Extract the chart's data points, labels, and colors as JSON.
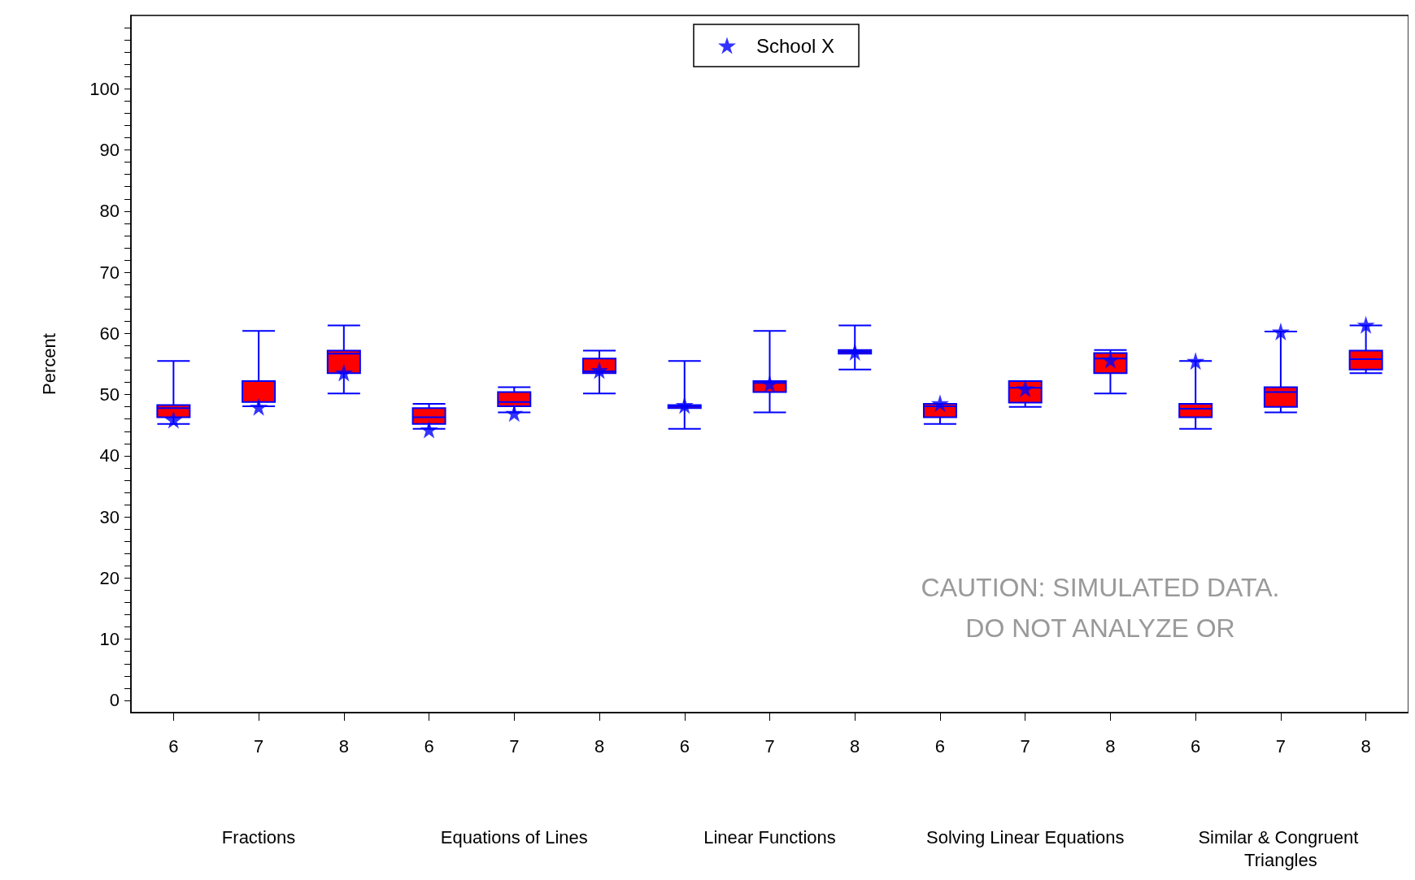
{
  "chart_data": {
    "type": "box",
    "ylabel": "Percent",
    "categories": [
      "6",
      "7",
      "8",
      "6",
      "7",
      "8",
      "6",
      "7",
      "8",
      "6",
      "7",
      "8",
      "6",
      "7",
      "8"
    ],
    "ylim": [
      -2,
      112
    ],
    "yticks": [
      0,
      10,
      20,
      30,
      40,
      50,
      60,
      70,
      80,
      90,
      100,
      {
        "value": 2,
        "label": null
      },
      {
        "value": 4,
        "label": null
      },
      {
        "value": 6,
        "label": null
      },
      {
        "value": 8,
        "label": null
      },
      {
        "value": 12,
        "label": null
      },
      {
        "value": 14,
        "label": null
      },
      {
        "value": 16,
        "label": null
      },
      {
        "value": 18,
        "label": null
      },
      {
        "value": 22,
        "label": null
      },
      {
        "value": 24,
        "label": null
      },
      {
        "value": 26,
        "label": null
      },
      {
        "value": 28,
        "label": null
      },
      {
        "value": 32,
        "label": null
      },
      {
        "value": 34,
        "label": null
      },
      {
        "value": 36,
        "label": null
      },
      {
        "value": 38,
        "label": null
      },
      {
        "value": 42,
        "label": null
      },
      {
        "value": 44,
        "label": null
      },
      {
        "value": 46,
        "label": null
      },
      {
        "value": 48,
        "label": null
      },
      {
        "value": 52,
        "label": null
      },
      {
        "value": 54,
        "label": null
      },
      {
        "value": 56,
        "label": null
      },
      {
        "value": 58,
        "label": null
      },
      {
        "value": 62,
        "label": null
      },
      {
        "value": 64,
        "label": null
      },
      {
        "value": 66,
        "label": null
      },
      {
        "value": 68,
        "label": null
      },
      {
        "value": 72,
        "label": null
      },
      {
        "value": 74,
        "label": null
      },
      {
        "value": 76,
        "label": null
      },
      {
        "value": 78,
        "label": null
      },
      {
        "value": 82,
        "label": null
      },
      {
        "value": 84,
        "label": null
      },
      {
        "value": 86,
        "label": null
      },
      {
        "value": 88,
        "label": null
      },
      {
        "value": 92,
        "label": null
      },
      {
        "value": 94,
        "label": null
      },
      {
        "value": 96,
        "label": null
      },
      {
        "value": 98,
        "label": null
      },
      {
        "value": 102,
        "label": null
      },
      {
        "value": 104,
        "label": null
      },
      {
        "value": 106,
        "label": null
      },
      {
        "value": 108,
        "label": null
      },
      {
        "value": 110,
        "label": null
      }
    ],
    "grid": false,
    "legend": "top",
    "series": [
      {
        "color": "#ff0000",
        "boxes": [
          {
            "low": 45.2,
            "q1": 46.3,
            "median": 47.8,
            "q3": 48.3,
            "high": 55.5
          },
          {
            "low": 48.1,
            "q1": 48.8,
            "median": 48.8,
            "q3": 52.2,
            "high": 60.4
          },
          {
            "low": 50.2,
            "q1": 53.5,
            "median": 56.7,
            "q3": 57.2,
            "high": 61.3
          },
          {
            "low": 44.4,
            "q1": 45.2,
            "median": 46.3,
            "q3": 47.8,
            "high": 48.5
          },
          {
            "low": 47.1,
            "q1": 48.1,
            "median": 48.8,
            "q3": 50.4,
            "high": 51.2
          },
          {
            "low": 50.2,
            "q1": 53.5,
            "median": 53.8,
            "q3": 55.9,
            "high": 57.2
          },
          {
            "low": 44.4,
            "q1": 47.8,
            "median": 48.1,
            "q3": 48.3,
            "high": 55.5
          },
          {
            "low": 47.1,
            "q1": 50.4,
            "median": 51.9,
            "q3": 52.2,
            "high": 60.4
          },
          {
            "low": 54.1,
            "q1": 56.7,
            "median": 57.0,
            "q3": 57.3,
            "high": 61.3
          },
          {
            "low": 45.2,
            "q1": 46.3,
            "median": 48.1,
            "q3": 48.5,
            "high": 48.5
          },
          {
            "low": 48.0,
            "q1": 48.7,
            "median": 51.1,
            "q3": 52.2,
            "high": 52.2
          },
          {
            "low": 50.2,
            "q1": 53.5,
            "median": 55.9,
            "q3": 56.8,
            "high": 57.3
          },
          {
            "low": 44.4,
            "q1": 46.3,
            "median": 47.7,
            "q3": 48.5,
            "high": 55.5
          },
          {
            "low": 47.1,
            "q1": 48.0,
            "median": 50.4,
            "q3": 51.2,
            "high": 60.3
          },
          {
            "low": 53.5,
            "q1": 54.1,
            "median": 55.8,
            "q3": 57.2,
            "high": 61.3
          }
        ]
      },
      {
        "type": "scatter",
        "name": "School X",
        "color": "#0000ff",
        "marker": "star",
        "values": [
          45.9,
          48.0,
          53.6,
          44.3,
          47.0,
          54.0,
          48.3,
          51.8,
          57.0,
          48.6,
          51.0,
          55.7,
          55.5,
          60.3,
          61.4
        ]
      }
    ],
    "annotations": [
      "Fractions",
      "Equations of Lines",
      "Linear Functions",
      "Solving Linear Equations",
      "Similar & Congruent Triangles",
      "CAUTION: SIMULATED DATA.\nDO NOT ANALYZE OR"
    ]
  }
}
